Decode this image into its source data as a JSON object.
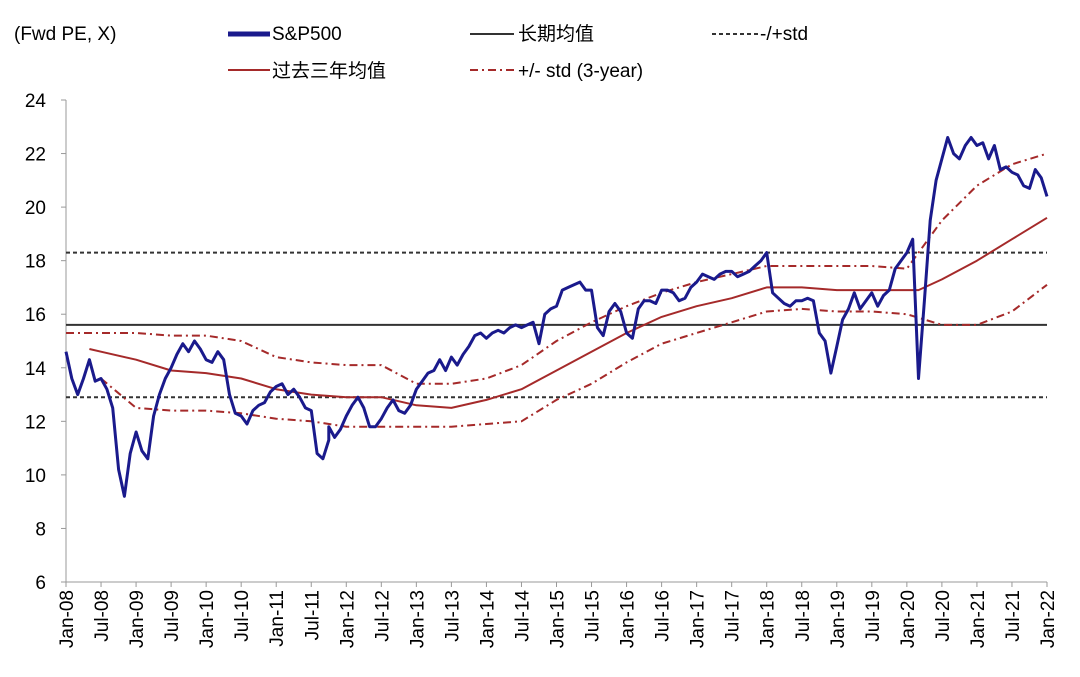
{
  "chart_data": {
    "type": "line",
    "y_unit_label": "(Fwd PE, X)",
    "ylim": [
      6,
      24
    ],
    "y_ticks": [
      "6",
      "8",
      "10",
      "12",
      "14",
      "16",
      "18",
      "20",
      "22",
      "24"
    ],
    "x_range": [
      "2008-01",
      "2022-01"
    ],
    "x_ticks": [
      "Jan-08",
      "Jul-08",
      "Jan-09",
      "Jul-09",
      "Jan-10",
      "Jul-10",
      "Jan-11",
      "Jul-11",
      "Jan-12",
      "Jul-12",
      "Jan-13",
      "Jul-13",
      "Jan-14",
      "Jul-14",
      "Jan-15",
      "Jul-15",
      "Jan-16",
      "Jul-16",
      "Jan-17",
      "Jul-17",
      "Jan-18",
      "Jul-18",
      "Jan-19",
      "Jul-19",
      "Jan-20",
      "Jul-20",
      "Jan-21",
      "Jul-21",
      "Jan-22"
    ],
    "grid": false,
    "legend_position": "top",
    "series": [
      {
        "name": "S&P500",
        "color": "#1a1a8c",
        "style": "solid",
        "points": [
          [
            "2008-01",
            14.6
          ],
          [
            "2008-02",
            13.6
          ],
          [
            "2008-03",
            13.0
          ],
          [
            "2008-04",
            13.6
          ],
          [
            "2008-05",
            14.3
          ],
          [
            "2008-06",
            13.5
          ],
          [
            "2008-07",
            13.6
          ],
          [
            "2008-08",
            13.2
          ],
          [
            "2008-09",
            12.5
          ],
          [
            "2008-10",
            10.2
          ],
          [
            "2008-11",
            9.2
          ],
          [
            "2008-12",
            10.8
          ],
          [
            "2009-01",
            11.6
          ],
          [
            "2009-02",
            10.9
          ],
          [
            "2009-03",
            10.6
          ],
          [
            "2009-04",
            12.2
          ],
          [
            "2009-05",
            13.0
          ],
          [
            "2009-06",
            13.6
          ],
          [
            "2009-07",
            14.0
          ],
          [
            "2009-08",
            14.5
          ],
          [
            "2009-09",
            14.9
          ],
          [
            "2009-10",
            14.6
          ],
          [
            "2009-11",
            15.0
          ],
          [
            "2009-12",
            14.7
          ],
          [
            "2010-01",
            14.3
          ],
          [
            "2010-02",
            14.2
          ],
          [
            "2010-03",
            14.6
          ],
          [
            "2010-04",
            14.3
          ],
          [
            "2010-05",
            13.0
          ],
          [
            "2010-06",
            12.3
          ],
          [
            "2010-07",
            12.2
          ],
          [
            "2010-08",
            11.9
          ],
          [
            "2010-09",
            12.4
          ],
          [
            "2010-10",
            12.6
          ],
          [
            "2010-11",
            12.7
          ],
          [
            "2010-12",
            13.1
          ],
          [
            "2011-01",
            13.3
          ],
          [
            "2011-02",
            13.4
          ],
          [
            "2011-03",
            13.0
          ],
          [
            "2011-04",
            13.2
          ],
          [
            "2011-05",
            12.9
          ],
          [
            "2011-06",
            12.5
          ],
          [
            "2011-07",
            12.4
          ],
          [
            "2011-08",
            10.8
          ],
          [
            "2011-09",
            10.6
          ],
          [
            "2011-10",
            11.3
          ],
          [
            "2011-10",
            11.8
          ],
          [
            "2011-11",
            11.4
          ],
          [
            "2011-12",
            11.7
          ],
          [
            "2012-01",
            12.2
          ],
          [
            "2012-02",
            12.6
          ],
          [
            "2012-03",
            12.9
          ],
          [
            "2012-04",
            12.5
          ],
          [
            "2012-05",
            11.8
          ],
          [
            "2012-06",
            11.8
          ],
          [
            "2012-07",
            12.1
          ],
          [
            "2012-08",
            12.5
          ],
          [
            "2012-09",
            12.8
          ],
          [
            "2012-10",
            12.4
          ],
          [
            "2012-11",
            12.3
          ],
          [
            "2012-12",
            12.6
          ],
          [
            "2013-01",
            13.2
          ],
          [
            "2013-02",
            13.5
          ],
          [
            "2013-03",
            13.8
          ],
          [
            "2013-04",
            13.9
          ],
          [
            "2013-05",
            14.3
          ],
          [
            "2013-06",
            13.9
          ],
          [
            "2013-07",
            14.4
          ],
          [
            "2013-08",
            14.1
          ],
          [
            "2013-09",
            14.5
          ],
          [
            "2013-10",
            14.8
          ],
          [
            "2013-11",
            15.2
          ],
          [
            "2013-12",
            15.3
          ],
          [
            "2014-01",
            15.1
          ],
          [
            "2014-02",
            15.3
          ],
          [
            "2014-03",
            15.4
          ],
          [
            "2014-04",
            15.3
          ],
          [
            "2014-05",
            15.5
          ],
          [
            "2014-06",
            15.6
          ],
          [
            "2014-07",
            15.5
          ],
          [
            "2014-08",
            15.6
          ],
          [
            "2014-09",
            15.7
          ],
          [
            "2014-10",
            14.9
          ],
          [
            "2014-11",
            16.0
          ],
          [
            "2014-12",
            16.2
          ],
          [
            "2015-01",
            16.3
          ],
          [
            "2015-02",
            16.9
          ],
          [
            "2015-03",
            17.0
          ],
          [
            "2015-04",
            17.1
          ],
          [
            "2015-05",
            17.2
          ],
          [
            "2015-06",
            16.9
          ],
          [
            "2015-07",
            16.9
          ],
          [
            "2015-08",
            15.5
          ],
          [
            "2015-09",
            15.2
          ],
          [
            "2015-10",
            16.1
          ],
          [
            "2015-11",
            16.4
          ],
          [
            "2015-12",
            16.1
          ],
          [
            "2016-01",
            15.3
          ],
          [
            "2016-02",
            15.1
          ],
          [
            "2016-03",
            16.2
          ],
          [
            "2016-04",
            16.5
          ],
          [
            "2016-05",
            16.5
          ],
          [
            "2016-06",
            16.4
          ],
          [
            "2016-07",
            16.9
          ],
          [
            "2016-08",
            16.9
          ],
          [
            "2016-09",
            16.8
          ],
          [
            "2016-10",
            16.5
          ],
          [
            "2016-11",
            16.6
          ],
          [
            "2016-12",
            17.0
          ],
          [
            "2017-01",
            17.2
          ],
          [
            "2017-02",
            17.5
          ],
          [
            "2017-03",
            17.4
          ],
          [
            "2017-04",
            17.3
          ],
          [
            "2017-05",
            17.5
          ],
          [
            "2017-06",
            17.6
          ],
          [
            "2017-07",
            17.6
          ],
          [
            "2017-08",
            17.4
          ],
          [
            "2017-09",
            17.5
          ],
          [
            "2017-10",
            17.6
          ],
          [
            "2017-11",
            17.8
          ],
          [
            "2017-12",
            18.0
          ],
          [
            "2018-01",
            18.3
          ],
          [
            "2018-02",
            16.8
          ],
          [
            "2018-03",
            16.6
          ],
          [
            "2018-04",
            16.4
          ],
          [
            "2018-05",
            16.3
          ],
          [
            "2018-06",
            16.5
          ],
          [
            "2018-07",
            16.5
          ],
          [
            "2018-08",
            16.6
          ],
          [
            "2018-09",
            16.5
          ],
          [
            "2018-10",
            15.3
          ],
          [
            "2018-11",
            15.0
          ],
          [
            "2018-12",
            13.8
          ],
          [
            "2019-01",
            14.8
          ],
          [
            "2019-02",
            15.8
          ],
          [
            "2019-03",
            16.2
          ],
          [
            "2019-04",
            16.8
          ],
          [
            "2019-05",
            16.2
          ],
          [
            "2019-06",
            16.5
          ],
          [
            "2019-07",
            16.8
          ],
          [
            "2019-08",
            16.3
          ],
          [
            "2019-09",
            16.7
          ],
          [
            "2019-10",
            16.9
          ],
          [
            "2019-11",
            17.7
          ],
          [
            "2019-12",
            18.0
          ],
          [
            "2020-01",
            18.3
          ],
          [
            "2020-02",
            18.8
          ],
          [
            "2020-03",
            13.6
          ],
          [
            "2020-04",
            16.5
          ],
          [
            "2020-05",
            19.5
          ],
          [
            "2020-06",
            21.0
          ],
          [
            "2020-07",
            21.8
          ],
          [
            "2020-08",
            22.6
          ],
          [
            "2020-09",
            22.0
          ],
          [
            "2020-10",
            21.8
          ],
          [
            "2020-11",
            22.3
          ],
          [
            "2020-12",
            22.6
          ],
          [
            "2021-01",
            22.3
          ],
          [
            "2021-02",
            22.4
          ],
          [
            "2021-03",
            21.8
          ],
          [
            "2021-04",
            22.3
          ],
          [
            "2021-05",
            21.4
          ],
          [
            "2021-06",
            21.5
          ],
          [
            "2021-07",
            21.3
          ],
          [
            "2021-08",
            21.2
          ],
          [
            "2021-09",
            20.8
          ],
          [
            "2021-10",
            20.7
          ],
          [
            "2021-11",
            21.4
          ],
          [
            "2021-12",
            21.1
          ],
          [
            "2022-01",
            20.4
          ]
        ]
      },
      {
        "name": "长期均值",
        "color": "#333333",
        "style": "solid",
        "points": [
          [
            "2008-01",
            15.6
          ],
          [
            "2022-01",
            15.6
          ]
        ]
      },
      {
        "name": "-/+std",
        "color": "#333333",
        "style": "dashed",
        "points_upper": [
          [
            "2008-01",
            18.3
          ],
          [
            "2022-01",
            18.3
          ]
        ],
        "points_lower": [
          [
            "2008-01",
            12.9
          ],
          [
            "2022-01",
            12.9
          ]
        ]
      },
      {
        "name": "过去三年均值",
        "color": "#a52a2a",
        "style": "solid",
        "points": [
          [
            "2008-05",
            14.7
          ],
          [
            "2008-07",
            14.6
          ],
          [
            "2009-01",
            14.3
          ],
          [
            "2009-07",
            13.9
          ],
          [
            "2010-01",
            13.8
          ],
          [
            "2010-07",
            13.6
          ],
          [
            "2011-01",
            13.2
          ],
          [
            "2011-07",
            13.0
          ],
          [
            "2012-01",
            12.9
          ],
          [
            "2012-07",
            12.9
          ],
          [
            "2013-01",
            12.6
          ],
          [
            "2013-07",
            12.5
          ],
          [
            "2014-01",
            12.8
          ],
          [
            "2014-07",
            13.2
          ],
          [
            "2015-01",
            13.9
          ],
          [
            "2015-07",
            14.6
          ],
          [
            "2016-01",
            15.3
          ],
          [
            "2016-07",
            15.9
          ],
          [
            "2017-01",
            16.3
          ],
          [
            "2017-07",
            16.6
          ],
          [
            "2018-01",
            17.0
          ],
          [
            "2018-07",
            17.0
          ],
          [
            "2019-01",
            16.9
          ],
          [
            "2019-07",
            16.9
          ],
          [
            "2020-01",
            16.9
          ],
          [
            "2020-03",
            16.9
          ],
          [
            "2020-07",
            17.3
          ],
          [
            "2021-01",
            18.0
          ],
          [
            "2021-07",
            18.8
          ],
          [
            "2022-01",
            19.6
          ]
        ]
      },
      {
        "name": "+/- std (3-year)",
        "color": "#a52a2a",
        "style": "dashdot",
        "points_upper": [
          [
            "2008-01",
            15.3
          ],
          [
            "2008-07",
            15.3
          ],
          [
            "2009-01",
            15.3
          ],
          [
            "2009-07",
            15.2
          ],
          [
            "2010-01",
            15.2
          ],
          [
            "2010-07",
            15.0
          ],
          [
            "2011-01",
            14.4
          ],
          [
            "2011-07",
            14.2
          ],
          [
            "2012-01",
            14.1
          ],
          [
            "2012-07",
            14.1
          ],
          [
            "2013-01",
            13.4
          ],
          [
            "2013-07",
            13.4
          ],
          [
            "2014-01",
            13.6
          ],
          [
            "2014-07",
            14.1
          ],
          [
            "2015-01",
            15.0
          ],
          [
            "2015-07",
            15.7
          ],
          [
            "2016-01",
            16.3
          ],
          [
            "2016-07",
            16.8
          ],
          [
            "2017-01",
            17.2
          ],
          [
            "2017-07",
            17.5
          ],
          [
            "2018-01",
            17.8
          ],
          [
            "2018-07",
            17.8
          ],
          [
            "2019-01",
            17.8
          ],
          [
            "2019-07",
            17.8
          ],
          [
            "2020-01",
            17.7
          ],
          [
            "2020-07",
            19.5
          ],
          [
            "2021-01",
            20.8
          ],
          [
            "2021-07",
            21.6
          ],
          [
            "2022-01",
            22.0
          ]
        ],
        "points_lower": [
          [
            "2008-07",
            13.6
          ],
          [
            "2009-01",
            12.5
          ],
          [
            "2009-07",
            12.4
          ],
          [
            "2010-01",
            12.4
          ],
          [
            "2010-07",
            12.3
          ],
          [
            "2011-01",
            12.1
          ],
          [
            "2011-07",
            12.0
          ],
          [
            "2012-01",
            11.8
          ],
          [
            "2012-07",
            11.8
          ],
          [
            "2013-01",
            11.8
          ],
          [
            "2013-07",
            11.8
          ],
          [
            "2014-01",
            11.9
          ],
          [
            "2014-07",
            12.0
          ],
          [
            "2015-01",
            12.8
          ],
          [
            "2015-07",
            13.4
          ],
          [
            "2016-01",
            14.2
          ],
          [
            "2016-07",
            14.9
          ],
          [
            "2017-01",
            15.3
          ],
          [
            "2017-07",
            15.7
          ],
          [
            "2018-01",
            16.1
          ],
          [
            "2018-07",
            16.2
          ],
          [
            "2019-01",
            16.1
          ],
          [
            "2019-07",
            16.1
          ],
          [
            "2020-01",
            16.0
          ],
          [
            "2020-07",
            15.6
          ],
          [
            "2021-01",
            15.6
          ],
          [
            "2021-07",
            16.1
          ],
          [
            "2022-01",
            17.1
          ]
        ]
      }
    ]
  }
}
